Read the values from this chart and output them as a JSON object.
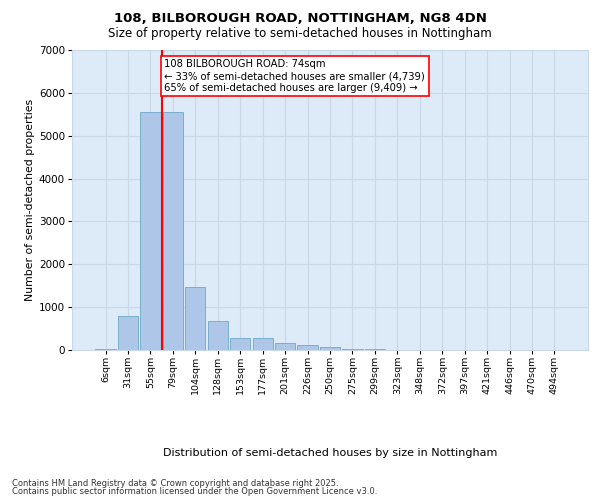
{
  "title1": "108, BILBOROUGH ROAD, NOTTINGHAM, NG8 4DN",
  "title2": "Size of property relative to semi-detached houses in Nottingham",
  "xlabel": "Distribution of semi-detached houses by size in Nottingham",
  "ylabel": "Number of semi-detached properties",
  "categories": [
    "6sqm",
    "31sqm",
    "55sqm",
    "79sqm",
    "104sqm",
    "128sqm",
    "153sqm",
    "177sqm",
    "201sqm",
    "226sqm",
    "250sqm",
    "275sqm",
    "299sqm",
    "323sqm",
    "348sqm",
    "372sqm",
    "397sqm",
    "421sqm",
    "446sqm",
    "470sqm",
    "494sqm"
  ],
  "values": [
    30,
    800,
    5560,
    5550,
    1480,
    680,
    290,
    270,
    165,
    110,
    75,
    30,
    15,
    5,
    3,
    2,
    1,
    1,
    1,
    0,
    0
  ],
  "bar_color": "#aec6e8",
  "bar_edge_color": "#5a9fc0",
  "grid_color": "#c8d8e8",
  "bg_color": "#ddeaf8",
  "vline_x": 2.5,
  "vline_color": "red",
  "annotation_text": "108 BILBOROUGH ROAD: 74sqm\n← 33% of semi-detached houses are smaller (4,739)\n65% of semi-detached houses are larger (9,409) →",
  "annotation_box_color": "red",
  "footer1": "Contains HM Land Registry data © Crown copyright and database right 2025.",
  "footer2": "Contains public sector information licensed under the Open Government Licence v3.0.",
  "ylim": [
    0,
    7000
  ],
  "yticks": [
    0,
    1000,
    2000,
    3000,
    4000,
    5000,
    6000,
    7000
  ]
}
